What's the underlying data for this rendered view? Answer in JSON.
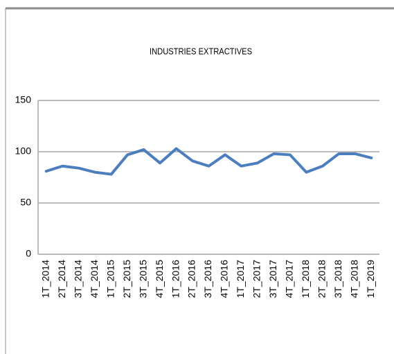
{
  "chart_data": {
    "type": "line",
    "title": "INDUSTRIES EXTRACTIVES",
    "categories": [
      "1T_2014",
      "2T_2014",
      "3T_2014",
      "4T_2014",
      "1T_2015",
      "2T_2015",
      "3T_2015",
      "4T_2015",
      "1T_2016",
      "2T_2016",
      "3T_2016",
      "4T_2016",
      "1T_2017",
      "2T_2017",
      "3T_2017",
      "4T_2017",
      "1T_2018",
      "2T_2018",
      "3T_2018",
      "4T_2018",
      "1T_2019"
    ],
    "values": [
      81,
      86,
      84,
      80,
      78,
      97,
      102,
      89,
      103,
      91,
      86,
      97,
      86,
      89,
      98,
      97,
      80,
      86,
      98,
      98,
      94
    ],
    "color": "#4a7ebf",
    "ylim": [
      0,
      150
    ],
    "yticks": [
      0,
      50,
      100,
      150
    ],
    "grid": true
  }
}
